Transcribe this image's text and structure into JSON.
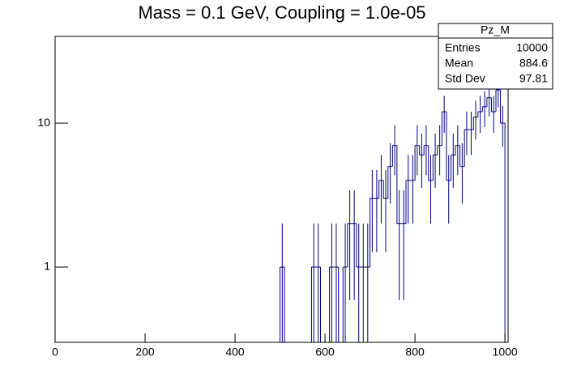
{
  "chart_data": {
    "type": "histogram",
    "title": "Mass = 0.1 GeV, Coupling = 1.0e-05",
    "bins": [
      0,
      10,
      20,
      30,
      40,
      50,
      60,
      70,
      80,
      90,
      100,
      110,
      120,
      130,
      140,
      150,
      160,
      170,
      180,
      190,
      200,
      210,
      220,
      230,
      240,
      250,
      260,
      270,
      280,
      290,
      300,
      310,
      320,
      330,
      340,
      350,
      360,
      370,
      380,
      390,
      400,
      410,
      420,
      430,
      440,
      450,
      460,
      470,
      480,
      490,
      500,
      510,
      520,
      530,
      540,
      550,
      560,
      570,
      580,
      590,
      600,
      610,
      620,
      630,
      640,
      650,
      660,
      670,
      680,
      690,
      700,
      710,
      720,
      730,
      740,
      750,
      760,
      770,
      780,
      790,
      800,
      810,
      820,
      830,
      840,
      850,
      860,
      870,
      880,
      890,
      900,
      910,
      920,
      930,
      940,
      950,
      960,
      970,
      980,
      990,
      1000
    ],
    "values": [
      0,
      0,
      0,
      0,
      0,
      0,
      0,
      0,
      0,
      0,
      0,
      0,
      0,
      0,
      0,
      0,
      0,
      0,
      0,
      0,
      0,
      0,
      0,
      0,
      0,
      0,
      0,
      0,
      0,
      0,
      0,
      0,
      0,
      0,
      0,
      0,
      0,
      0,
      0,
      0,
      0,
      0,
      0,
      0,
      0,
      0,
      0,
      0,
      0,
      0,
      1,
      0,
      0,
      0,
      0,
      0,
      0,
      1,
      1,
      0,
      0,
      1,
      1,
      0,
      1,
      2,
      2,
      1,
      1,
      1,
      3,
      3,
      4,
      3,
      5,
      7,
      2,
      2,
      4,
      4,
      7,
      6,
      7,
      4,
      6,
      7,
      12,
      4,
      6,
      7,
      5,
      9,
      9,
      11,
      12,
      13,
      15,
      12,
      17,
      10
    ],
    "errors": [
      0,
      0,
      0,
      0,
      0,
      0,
      0,
      0,
      0,
      0,
      0,
      0,
      0,
      0,
      0,
      0,
      0,
      0,
      0,
      0,
      0,
      0,
      0,
      0,
      0,
      0,
      0,
      0,
      0,
      0,
      0,
      0,
      0,
      0,
      0,
      0,
      0,
      0,
      0,
      0,
      0,
      0,
      0,
      0,
      0,
      0,
      0,
      0,
      0,
      0,
      1,
      0,
      0,
      0,
      0,
      0,
      0,
      1,
      1,
      0,
      0,
      1,
      1,
      0,
      1,
      1.41,
      1.41,
      1,
      1,
      1,
      1.73,
      1.73,
      2,
      1.73,
      2.24,
      2.65,
      1.41,
      1.41,
      2,
      2,
      2.65,
      2.45,
      2.65,
      2,
      2.45,
      2.65,
      3.46,
      2,
      2.45,
      2.65,
      2.24,
      3,
      3,
      3.32,
      3.46,
      3.61,
      3.87,
      3.46,
      4.12,
      3.16
    ],
    "color": "#000080",
    "xlim": [
      0,
      1007
    ],
    "xticks": [
      0,
      200,
      400,
      600,
      800,
      1000
    ],
    "ylim": [
      0.3,
      40
    ],
    "yticks": [
      1,
      10
    ],
    "log_y": true,
    "stats": {
      "name": "Pz_M",
      "rows": [
        {
          "label": "Entries",
          "value": 10000
        },
        {
          "label": "Mean",
          "value": 884.6
        },
        {
          "label": "Std Dev",
          "value": 97.81
        }
      ]
    }
  }
}
